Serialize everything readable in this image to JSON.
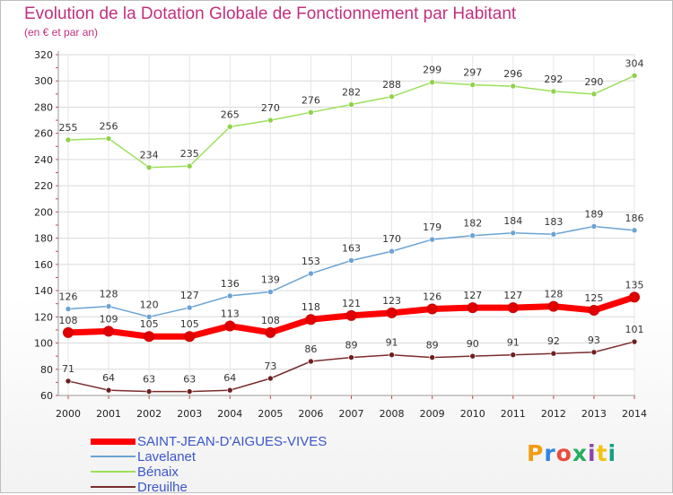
{
  "header": {
    "title": "Evolution de la Dotation Globale de Fonctionnement par Habitant",
    "subtitle": "(en € et par an)"
  },
  "logo": {
    "text": "Proxiti",
    "colors": [
      "#f39c12",
      "#2e86de",
      "#e74c3c",
      "#27ae60",
      "#8e44ad",
      "#f1c40f",
      "#16a085"
    ]
  },
  "chart_data": {
    "type": "line",
    "x": [
      "2000",
      "2001",
      "2002",
      "2003",
      "2004",
      "2005",
      "2006",
      "2007",
      "2008",
      "2009",
      "2010",
      "2011",
      "2012",
      "2013",
      "2014"
    ],
    "ylim": [
      60,
      320
    ],
    "yticks": [
      60,
      80,
      100,
      120,
      140,
      160,
      180,
      200,
      220,
      240,
      260,
      280,
      300,
      320
    ],
    "grid": true,
    "legend_position": "bottom-left",
    "series": [
      {
        "name": "SAINT-JEAN-D'AIGUES-VIVES",
        "color": "#ff0000",
        "marker": "#e00000",
        "width": 7,
        "values": [
          108,
          109,
          105,
          105,
          113,
          108,
          118,
          121,
          123,
          126,
          127,
          127,
          128,
          125,
          135
        ]
      },
      {
        "name": "Lavelanet",
        "color": "#6aa3d5",
        "marker": "#6aa3d5",
        "width": 1.5,
        "values": [
          126,
          128,
          120,
          127,
          136,
          139,
          153,
          163,
          170,
          179,
          182,
          184,
          183,
          189,
          186
        ]
      },
      {
        "name": "Bénaix",
        "color": "#9be05a",
        "marker": "#8fd24c",
        "width": 1.5,
        "values": [
          255,
          256,
          234,
          235,
          265,
          270,
          276,
          282,
          288,
          299,
          297,
          296,
          292,
          290,
          304
        ]
      },
      {
        "name": "Dreuilhe",
        "color": "#7b2c2c",
        "marker": "#6e1f1f",
        "width": 1.5,
        "values": [
          71,
          64,
          63,
          63,
          64,
          73,
          86,
          89,
          91,
          89,
          90,
          91,
          92,
          93,
          101
        ]
      }
    ]
  }
}
